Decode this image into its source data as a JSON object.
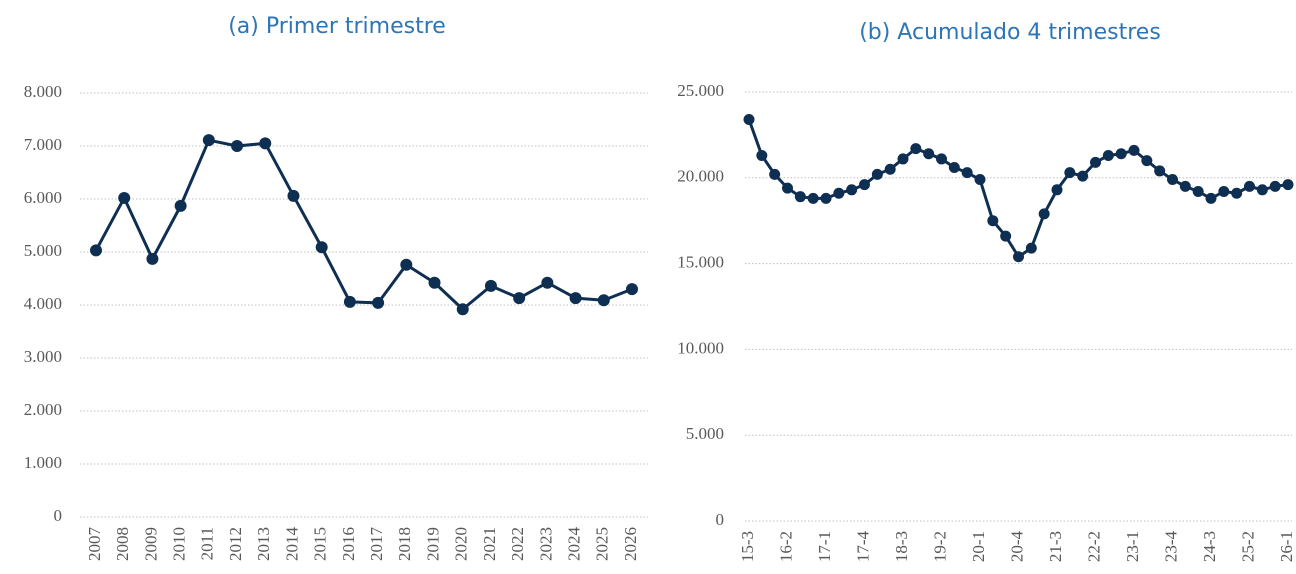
{
  "chart_data": [
    {
      "type": "line",
      "title": "(a) Primer trimestre",
      "categories": [
        "2007",
        "2008",
        "2009",
        "2010",
        "2011",
        "2012",
        "2013",
        "2014",
        "2015",
        "2016",
        "2017",
        "2018",
        "2019",
        "2020",
        "2021",
        "2022",
        "2023",
        "2024",
        "2025",
        "2026"
      ],
      "series": [
        {
          "name": null,
          "color": "#0f2f52",
          "values": [
            5030,
            6020,
            4870,
            5870,
            7110,
            7000,
            7050,
            6060,
            5090,
            4060,
            4040,
            4760,
            4420,
            3920,
            4360,
            4130,
            4420,
            4130,
            4090,
            4300
          ]
        }
      ],
      "ylim": [
        0,
        8000
      ],
      "yticks": [
        0,
        {
          "value": 1000,
          "label": "1.000"
        },
        {
          "value": 2000,
          "label": "2.000"
        },
        {
          "value": 3000,
          "label": "3.000"
        },
        {
          "value": 4000,
          "label": "4.000"
        },
        {
          "value": 5000,
          "label": "5.000"
        },
        {
          "value": 6000,
          "label": "6.000"
        },
        {
          "value": 7000,
          "label": "7.000"
        },
        {
          "value": 8000,
          "label": "8.000"
        }
      ],
      "grid": true
    },
    {
      "type": "line",
      "title": "(b) Acumulado 4 trimestres",
      "categories": [
        "15-3",
        null,
        null,
        "16-2",
        null,
        null,
        "17-1",
        null,
        null,
        "17-4",
        null,
        null,
        "18-3",
        null,
        null,
        "19-2",
        null,
        null,
        "20-1",
        null,
        null,
        "20-4",
        null,
        null,
        "21-3",
        null,
        null,
        "22-2",
        null,
        null,
        "23-1",
        null,
        null,
        "23-4",
        null,
        null,
        "24-3",
        null,
        null,
        "25-2",
        null,
        null,
        "26-1"
      ],
      "series": [
        {
          "name": null,
          "color": "#0f2f52",
          "values": [
            23400,
            21300,
            20200,
            19400,
            18900,
            18800,
            18800,
            19100,
            19300,
            19600,
            20200,
            20500,
            21100,
            21700,
            21400,
            21100,
            20600,
            20300,
            19900,
            17500,
            16600,
            15400,
            15900,
            17900,
            19300,
            20300,
            20100,
            20900,
            21300,
            21400,
            21600,
            21000,
            20400,
            19900,
            19500,
            19200,
            18800,
            19200,
            19100,
            19500,
            19300,
            19500,
            19600
          ]
        }
      ],
      "ylim": [
        0,
        25000
      ],
      "yticks": [
        0,
        {
          "value": 5000,
          "label": "5.000"
        },
        {
          "value": 10000,
          "label": "10.000"
        },
        {
          "value": 15000,
          "label": "15.000"
        },
        {
          "value": 20000,
          "label": "20.000"
        },
        {
          "value": 25000,
          "label": "25.000"
        }
      ],
      "grid": true
    }
  ]
}
